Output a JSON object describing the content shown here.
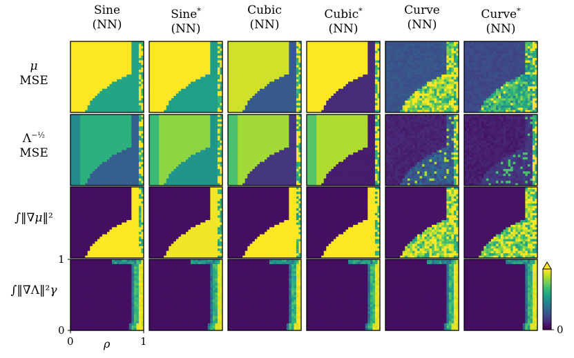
{
  "chart_data": {
    "type": "heatmap",
    "columns": [
      {
        "name": "Sine",
        "sub": "(NN)"
      },
      {
        "name": "Sine*",
        "sub": "(NN)"
      },
      {
        "name": "Cubic",
        "sub": "(NN)"
      },
      {
        "name": "Cubic*",
        "sub": "(NN)"
      },
      {
        "name": "Curve",
        "sub": "(NN)"
      },
      {
        "name": "Curve*",
        "sub": "(NN)"
      }
    ],
    "rows": [
      {
        "top": "μ",
        "bottom": "MSE"
      },
      {
        "top": "Λ^(-1/2)",
        "bottom": "MSE"
      },
      {
        "top": "∫‖∇μ‖²",
        "bottom": ""
      },
      {
        "top": "∫‖∇Λ‖²",
        "bottom": ""
      }
    ],
    "xlabel": "ρ",
    "ylabel": "γ",
    "xlim": [
      0,
      1
    ],
    "ylim": [
      0,
      1
    ],
    "x_ticks": [
      "0",
      "1"
    ],
    "y_ticks": [
      "0",
      "1"
    ],
    "colorbar": {
      "min_label": "0",
      "extend": "max",
      "colormap": "viridis"
    },
    "grid_resolution": 30,
    "cell_levels": [
      [
        [
          1.0,
          0.58
        ],
        [
          1.0,
          0.56
        ],
        [
          0.93,
          0.28
        ],
        [
          1.0,
          0.12
        ],
        [
          0.26,
          0.92
        ],
        [
          0.22,
          0.72
        ]
      ],
      [
        [
          0.63,
          0.3
        ],
        [
          0.83,
          0.52
        ],
        [
          0.86,
          0.16
        ],
        [
          0.88,
          0.08
        ],
        [
          0.1,
          0.32
        ],
        [
          0.08,
          0.18
        ]
      ],
      [
        [
          0.04,
          1.0
        ],
        [
          0.04,
          0.98
        ],
        [
          0.04,
          1.0
        ],
        [
          0.04,
          1.0
        ],
        [
          0.05,
          0.95
        ],
        [
          0.05,
          0.92
        ]
      ],
      [
        [
          0.04,
          0.8
        ],
        [
          0.04,
          0.8
        ],
        [
          0.04,
          0.8
        ],
        [
          0.04,
          0.8
        ],
        [
          0.04,
          0.78
        ],
        [
          0.04,
          0.78
        ]
      ]
    ]
  }
}
